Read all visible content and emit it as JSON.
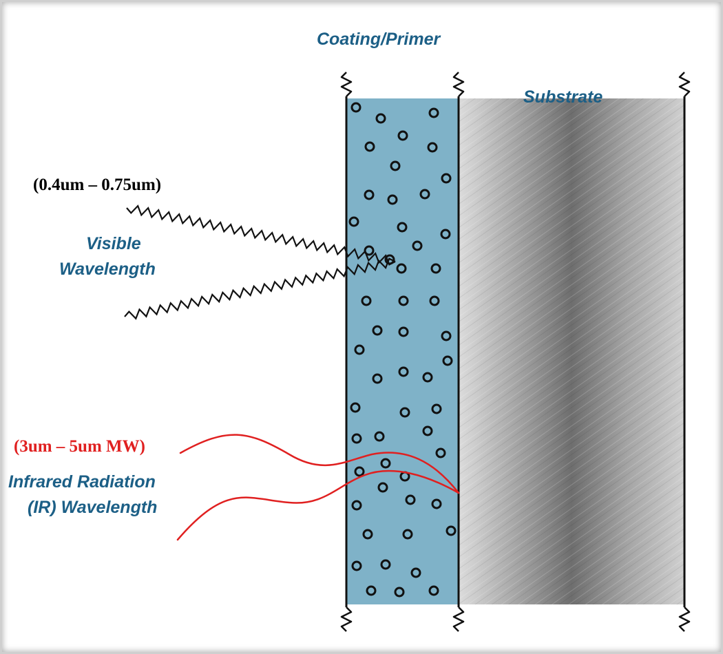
{
  "labels": {
    "coating": "Coating/Primer",
    "substrate": "Substrate",
    "visible_range": "(0.4um – 0.75um)",
    "visible_line1": "Visible",
    "visible_line2": "Wavelength",
    "ir_range": "(3um – 5um MW)",
    "ir_line1": "Infrared Radiation",
    "ir_line2": "(IR) Wavelength"
  },
  "colors": {
    "coating_fill": "#7fb2c8",
    "label_blue": "#1c5f86",
    "ir_red": "#e02020",
    "visible_wave": "#111111",
    "substrate_gray": "#9a9a9a"
  }
}
